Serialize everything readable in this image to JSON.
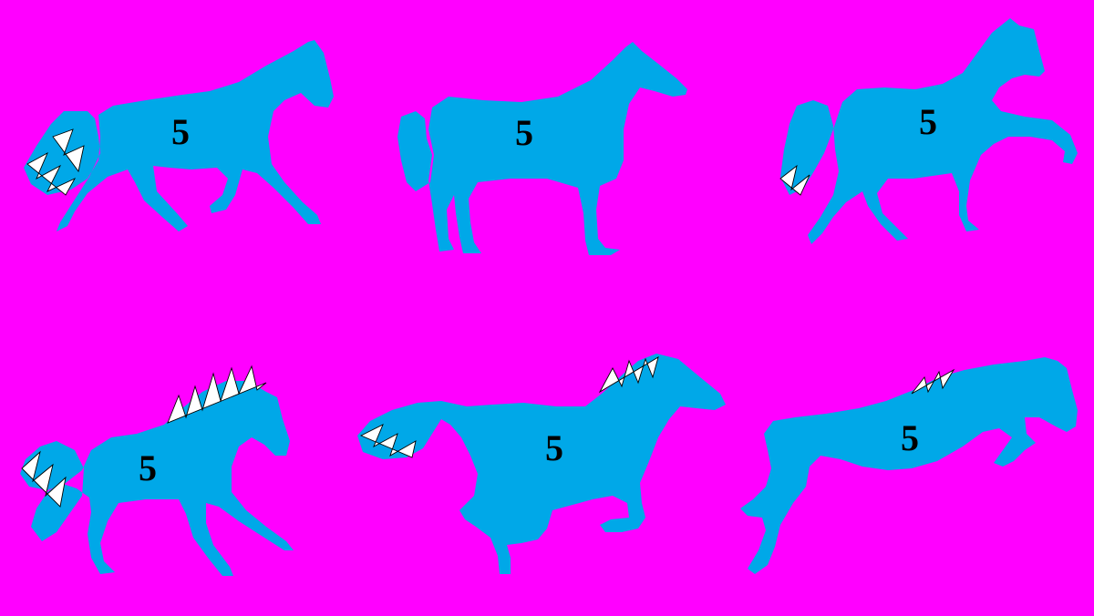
{
  "colors": {
    "background": "#ff00ff",
    "silhouette": "#00a8e8",
    "number": "#000000",
    "hair_highlight": "#ffffff",
    "hair_outline": "#000000"
  },
  "horses": [
    {
      "pose": "trotting",
      "number": "5"
    },
    {
      "pose": "standing",
      "number": "5"
    },
    {
      "pose": "prancing",
      "number": "5"
    },
    {
      "pose": "trotting-with-mane",
      "number": "5"
    },
    {
      "pose": "galloping",
      "number": "5"
    },
    {
      "pose": "jumping",
      "number": "5"
    }
  ]
}
